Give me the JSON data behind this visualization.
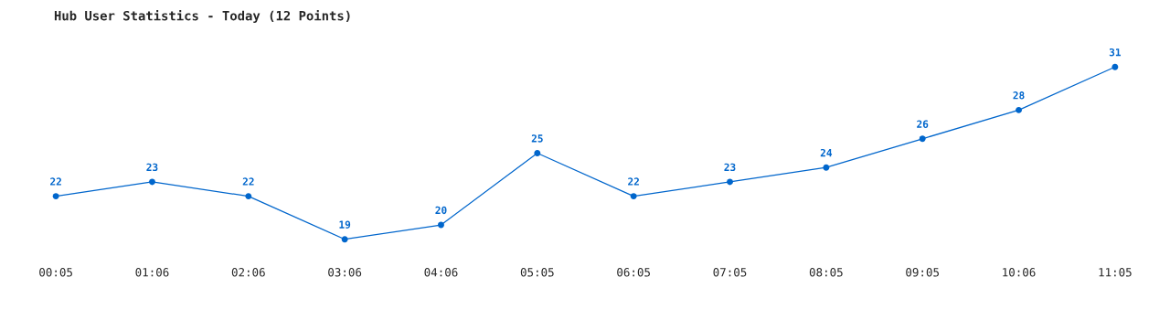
{
  "chart_data": {
    "type": "line",
    "title": "Hub User Statistics - Today (12 Points)",
    "categories": [
      "00:05",
      "01:06",
      "02:06",
      "03:06",
      "04:06",
      "05:05",
      "06:05",
      "07:05",
      "08:05",
      "09:05",
      "10:06",
      "11:05"
    ],
    "series": [
      {
        "color": "#0066cc",
        "values": [
          22,
          23,
          22,
          19,
          20,
          25,
          22,
          23,
          24,
          26,
          28,
          31
        ]
      }
    ],
    "tick_labels": "x",
    "data_labels": true,
    "marker": "circle",
    "line_style": "solid",
    "grid": false,
    "legend": false
  }
}
